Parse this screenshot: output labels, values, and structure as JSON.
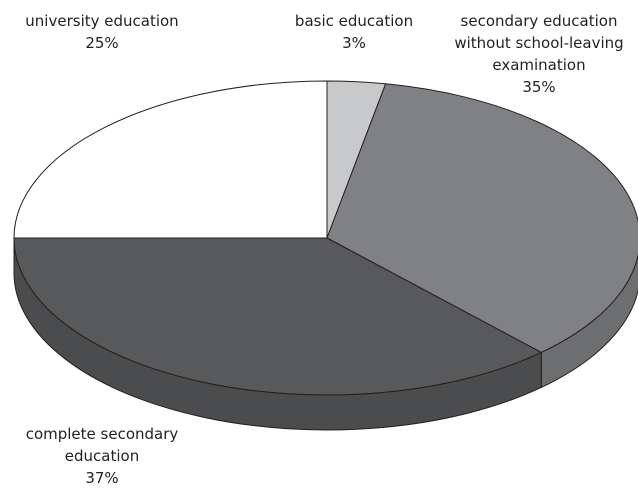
{
  "chart_data": {
    "type": "pie",
    "style": "3d",
    "start": "12 o'clock, clockwise",
    "slices": [
      {
        "label": "basic education",
        "value": 3,
        "value_label": "3%",
        "color": "#c8c9cb"
      },
      {
        "label": "secondary education without school-leaving examination",
        "value": 35,
        "value_label": "35%",
        "color": "#808184"
      },
      {
        "label": "complete secondary education",
        "value": 37,
        "value_label": "37%",
        "color": "#58595b"
      },
      {
        "label": "university education",
        "value": 25,
        "value_label": "25%",
        "color": "#ffffff"
      }
    ],
    "data_labels": [
      {
        "lines": [
          "basic education"
        ],
        "value": "3%"
      },
      {
        "lines": [
          "secondary education",
          "without school-leaving",
          "examination"
        ],
        "value": "35%"
      },
      {
        "lines": [
          "complete secondary",
          "education"
        ],
        "value": "37%"
      },
      {
        "lines": [
          "university education"
        ],
        "value": "25%"
      }
    ],
    "edge_color": "#231f20",
    "legend": "none"
  }
}
